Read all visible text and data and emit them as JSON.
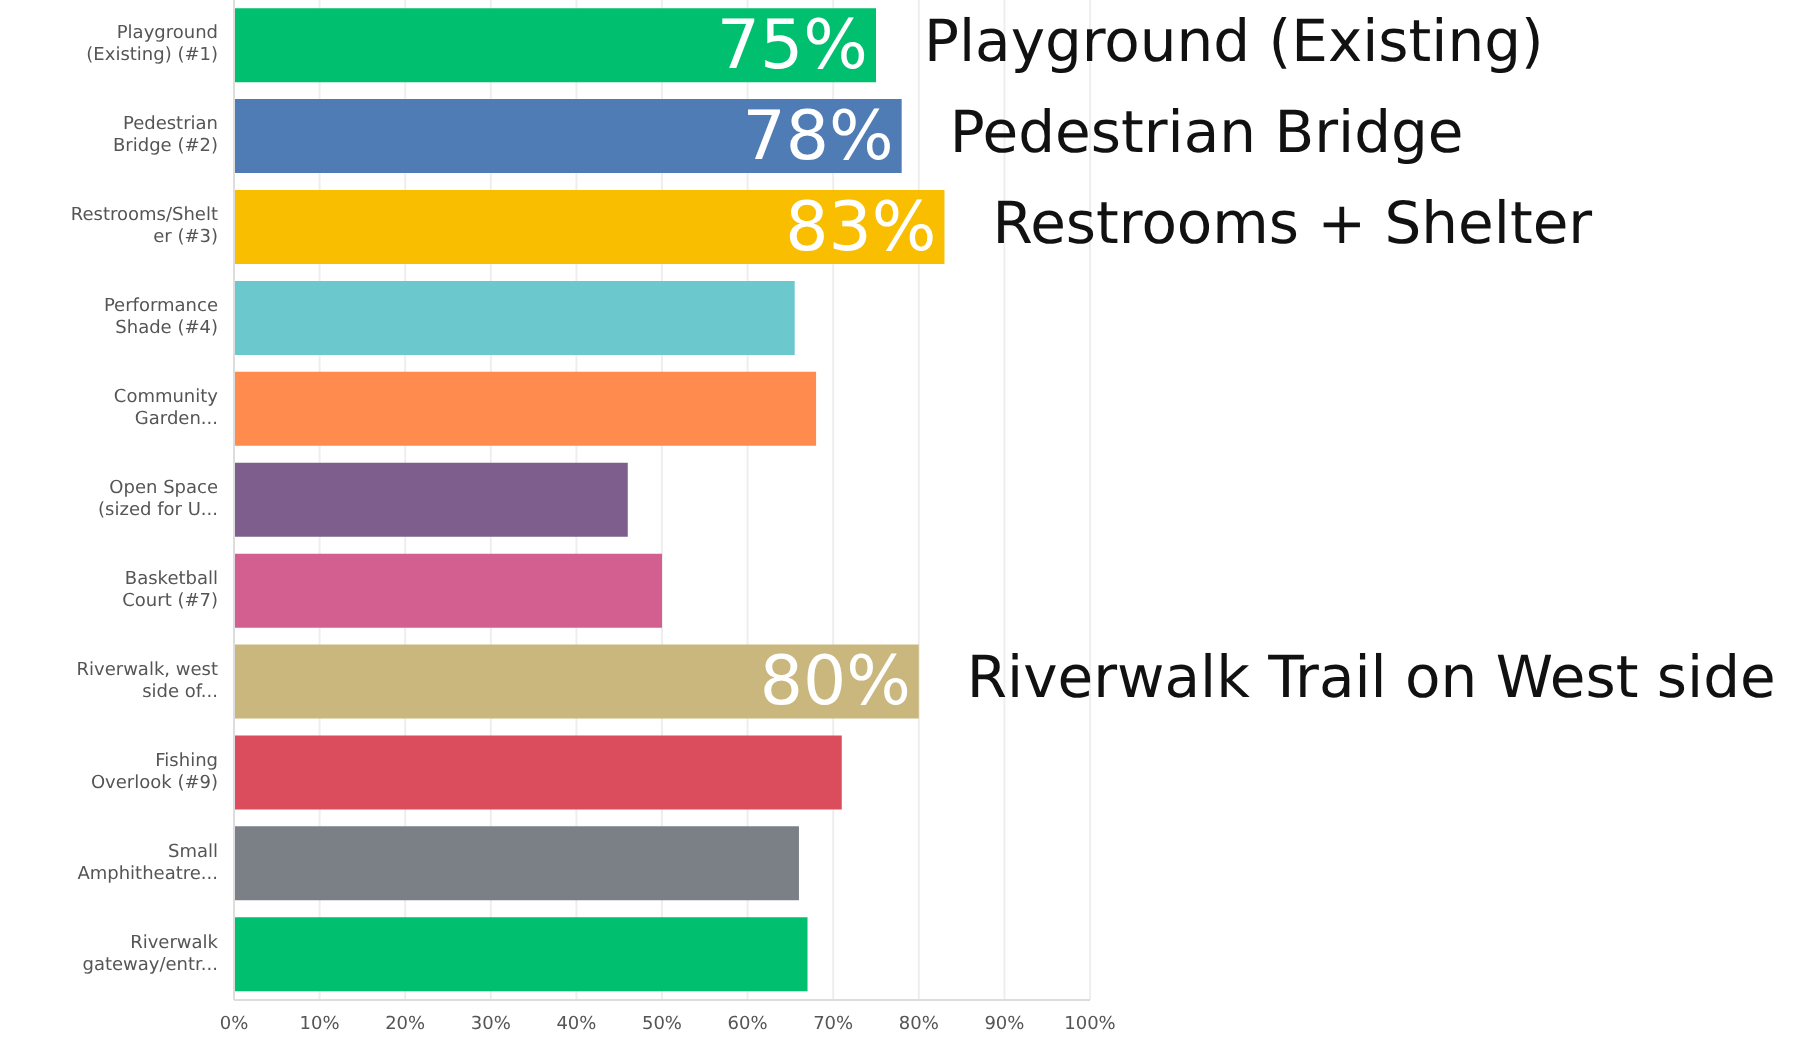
{
  "chart_data": {
    "type": "bar",
    "orientation": "horizontal",
    "categories": [
      "Playground (Existing) (#1)",
      "Pedestrian Bridge (#2)",
      "Restrooms/Shelter (#3)",
      "Performance Shade (#4)",
      "Community Garden...",
      "Open Space (sized for U...",
      "Basketball Court (#7)",
      "Riverwalk, west side of...",
      "Fishing Overlook (#9)",
      "Small Amphitheatre...",
      "Riverwalk gateway/entr..."
    ],
    "values": [
      75,
      78,
      83,
      65.5,
      68,
      46,
      50,
      80,
      71,
      66,
      67
    ],
    "colors": [
      "#00bf6f",
      "#507cb6",
      "#f9be00",
      "#6bc8cd",
      "#ff8b4f",
      "#7d5e8d",
      "#d25f90",
      "#c9b77d",
      "#db4d5c",
      "#7a8085",
      "#00bf6f"
    ],
    "value_labels": [
      "75%",
      "78%",
      "83%",
      null,
      null,
      null,
      null,
      "80%",
      null,
      null,
      null
    ],
    "annotations": [
      {
        "text": "Playground (Existing)",
        "x": 75,
        "y": "Playground (Existing) (#1)"
      },
      {
        "text": "Pedestrian Bridge",
        "x": 78,
        "y": "Pedestrian Bridge (#2)"
      },
      {
        "text": "Restrooms + Shelter",
        "x": 83,
        "y": "Restrooms/Shelter (#3)"
      },
      {
        "text": "Riverwalk Trail on West side",
        "x": 80,
        "y": "Riverwalk, west side of..."
      }
    ],
    "xlim": [
      0,
      100
    ],
    "xticks": [
      {
        "value": 0,
        "label": "0%"
      },
      {
        "value": 10,
        "label": "10%"
      },
      {
        "value": 20,
        "label": "20%"
      },
      {
        "value": 30,
        "label": "30%"
      },
      {
        "value": 40,
        "label": "40%"
      },
      {
        "value": 50,
        "label": "50%"
      },
      {
        "value": 60,
        "label": "60%"
      },
      {
        "value": 70,
        "label": "70%"
      },
      {
        "value": 80,
        "label": "80%"
      },
      {
        "value": 90,
        "label": "90%"
      },
      {
        "value": 100,
        "label": "100%"
      }
    ],
    "grid": "x",
    "legend": false
  }
}
